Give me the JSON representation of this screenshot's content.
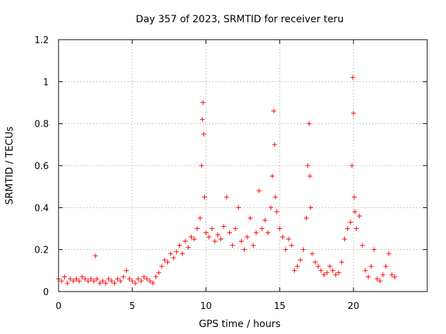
{
  "chart_data": {
    "type": "scatter",
    "title": "Day 357 of 2023, SRMTID for receiver teru",
    "xlabel": "GPS time / hours",
    "ylabel": "SRMTID / TECUs",
    "xlim": [
      0,
      25
    ],
    "ylim": [
      0,
      1.2
    ],
    "grid": true,
    "marker": "+",
    "color": "#ff0000",
    "x_ticks": [
      0,
      5,
      10,
      15,
      20
    ],
    "x_tick_labels": [
      "0",
      "5",
      "10",
      "15",
      "20"
    ],
    "y_ticks": [
      0,
      0.2,
      0.4,
      0.6,
      0.8,
      1.0,
      1.2
    ],
    "y_tick_labels": [
      "0",
      "0.2",
      "0.4",
      "0.6",
      "0.8",
      "1",
      "1.2"
    ],
    "series": [
      {
        "name": "SRMTID",
        "x": [
          0.0,
          0.2,
          0.4,
          0.6,
          0.8,
          1.0,
          1.2,
          1.4,
          1.6,
          1.8,
          2.0,
          2.2,
          2.4,
          2.5,
          2.6,
          2.8,
          3.0,
          3.2,
          3.4,
          3.6,
          3.8,
          4.0,
          4.2,
          4.4,
          4.6,
          4.8,
          5.0,
          5.2,
          5.4,
          5.6,
          5.8,
          6.0,
          6.2,
          6.4,
          6.6,
          6.8,
          7.0,
          7.2,
          7.4,
          7.6,
          7.8,
          8.0,
          8.2,
          8.4,
          8.6,
          8.8,
          9.0,
          9.2,
          9.4,
          9.6,
          9.7,
          9.75,
          9.8,
          9.85,
          9.9,
          10.0,
          10.2,
          10.4,
          10.6,
          10.8,
          11.0,
          11.2,
          11.4,
          11.6,
          11.8,
          12.0,
          12.2,
          12.4,
          12.6,
          12.8,
          13.0,
          13.2,
          13.4,
          13.6,
          13.8,
          14.0,
          14.2,
          14.4,
          14.5,
          14.6,
          14.65,
          14.7,
          14.8,
          15.0,
          15.2,
          15.4,
          15.6,
          15.8,
          16.0,
          16.2,
          16.4,
          16.6,
          16.8,
          16.9,
          17.0,
          17.05,
          17.1,
          17.2,
          17.4,
          17.6,
          17.8,
          18.0,
          18.2,
          18.4,
          18.6,
          18.8,
          19.0,
          19.2,
          19.4,
          19.6,
          19.8,
          19.9,
          19.95,
          20.0,
          20.05,
          20.1,
          20.2,
          20.4,
          20.6,
          20.8,
          21.0,
          21.2,
          21.4,
          21.6,
          21.8,
          22.0,
          22.2,
          22.4,
          22.6,
          22.8
        ],
        "y": [
          0.06,
          0.05,
          0.07,
          0.04,
          0.06,
          0.05,
          0.06,
          0.05,
          0.07,
          0.06,
          0.05,
          0.06,
          0.05,
          0.17,
          0.06,
          0.04,
          0.05,
          0.04,
          0.06,
          0.05,
          0.04,
          0.06,
          0.05,
          0.07,
          0.1,
          0.06,
          0.05,
          0.04,
          0.06,
          0.05,
          0.07,
          0.06,
          0.05,
          0.04,
          0.07,
          0.09,
          0.12,
          0.15,
          0.14,
          0.18,
          0.16,
          0.19,
          0.22,
          0.18,
          0.24,
          0.21,
          0.26,
          0.25,
          0.3,
          0.35,
          0.6,
          0.82,
          0.9,
          0.75,
          0.45,
          0.28,
          0.26,
          0.3,
          0.24,
          0.27,
          0.25,
          0.31,
          0.45,
          0.28,
          0.22,
          0.3,
          0.4,
          0.24,
          0.2,
          0.26,
          0.35,
          0.22,
          0.28,
          0.48,
          0.3,
          0.34,
          0.28,
          0.4,
          0.55,
          0.86,
          0.7,
          0.45,
          0.38,
          0.3,
          0.26,
          0.2,
          0.25,
          0.22,
          0.1,
          0.12,
          0.15,
          0.2,
          0.35,
          0.6,
          0.8,
          0.55,
          0.4,
          0.18,
          0.14,
          0.12,
          0.1,
          0.08,
          0.09,
          0.12,
          0.1,
          0.08,
          0.09,
          0.14,
          0.25,
          0.3,
          0.33,
          0.6,
          1.02,
          0.85,
          0.45,
          0.38,
          0.3,
          0.36,
          0.22,
          0.1,
          0.07,
          0.12,
          0.2,
          0.06,
          0.05,
          0.08,
          0.12,
          0.18,
          0.08,
          0.07
        ]
      }
    ]
  }
}
